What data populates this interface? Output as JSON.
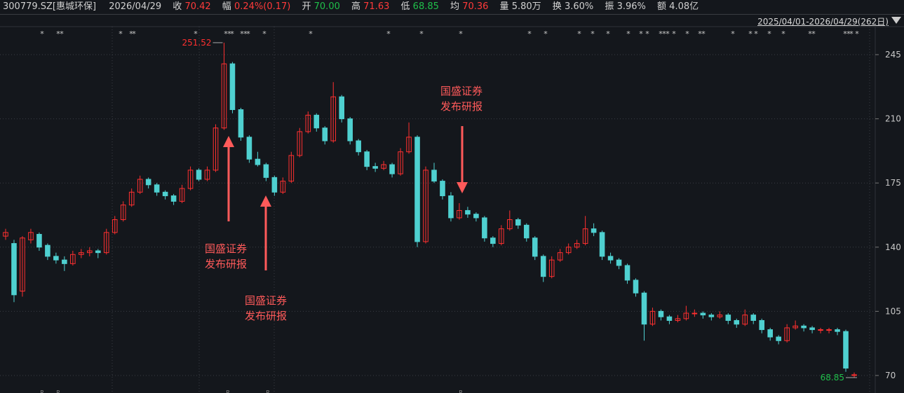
{
  "header": {
    "code": "300779.SZ[惠城环保]",
    "date": "2026/04/29",
    "close_label": "收",
    "close": "70.42",
    "chg_label": "幅",
    "chg": "0.24%(0.17)",
    "open_label": "开",
    "open": "70.00",
    "high_label": "高",
    "high": "71.63",
    "low_label": "低",
    "low": "68.85",
    "avg_label": "均",
    "avg": "70.36",
    "vol_label": "量",
    "vol": "5.80万",
    "turn_label": "换",
    "turn": "3.60%",
    "amp_label": "振",
    "amp": "3.96%",
    "amt_label": "额",
    "amt": "4.08亿"
  },
  "range": "2025/04/01-2026/04/29(262日)",
  "colors": {
    "up": "#ff3030",
    "down": "#4fd0d0",
    "bg": "#14171c",
    "annotation": "#ff5a5a"
  },
  "chart_data": {
    "type": "candlestick",
    "yticks": [
      245,
      210,
      175,
      140,
      105,
      70
    ],
    "ylim": [
      64,
      258
    ],
    "max_label": "251.52",
    "min_label": "68.85",
    "star_glyph": "*",
    "report_marker": "R",
    "annotations": [
      {
        "line1": "国盛证券",
        "line2": "发布研报"
      },
      {
        "line1": "国盛证券",
        "line2": "发布研报"
      },
      {
        "line1": "国盛证券",
        "line2": "发布研报"
      }
    ],
    "candles": [
      [
        146,
        150,
        144,
        148
      ],
      [
        142,
        144,
        110,
        114
      ],
      [
        116,
        146,
        113,
        145
      ],
      [
        144,
        150,
        142,
        148
      ],
      [
        147,
        148,
        138,
        140
      ],
      [
        141,
        142,
        133,
        135
      ],
      [
        135,
        137,
        131,
        133
      ],
      [
        133,
        135,
        127,
        131
      ],
      [
        131,
        138,
        130,
        136
      ],
      [
        136,
        139,
        134,
        137
      ],
      [
        137,
        140,
        135,
        138
      ],
      [
        138,
        139,
        134,
        137
      ],
      [
        137,
        150,
        136,
        148
      ],
      [
        148,
        157,
        147,
        155
      ],
      [
        155,
        165,
        154,
        163
      ],
      [
        163,
        172,
        162,
        170
      ],
      [
        170,
        179,
        169,
        177
      ],
      [
        177,
        178,
        172,
        174
      ],
      [
        174,
        175,
        168,
        170
      ],
      [
        170,
        171,
        166,
        168
      ],
      [
        168,
        169,
        163,
        165
      ],
      [
        165,
        174,
        164,
        172
      ],
      [
        172,
        184,
        171,
        182
      ],
      [
        182,
        183,
        176,
        177
      ],
      [
        177,
        184,
        176,
        182
      ],
      [
        182,
        207,
        181,
        205
      ],
      [
        205,
        251.52,
        204,
        240
      ],
      [
        240,
        241,
        213,
        215
      ],
      [
        215,
        216,
        198,
        200
      ],
      [
        200,
        201,
        186,
        188
      ],
      [
        188,
        192,
        184,
        185
      ],
      [
        185,
        186,
        176,
        178
      ],
      [
        178,
        179,
        168,
        170
      ],
      [
        170,
        178,
        169,
        176
      ],
      [
        176,
        192,
        175,
        190
      ],
      [
        190,
        205,
        189,
        203
      ],
      [
        203,
        214,
        202,
        212
      ],
      [
        212,
        213,
        203,
        205
      ],
      [
        205,
        206,
        196,
        198
      ],
      [
        198,
        230,
        197,
        222
      ],
      [
        222,
        223,
        208,
        210
      ],
      [
        210,
        211,
        196,
        198
      ],
      [
        198,
        199,
        190,
        192
      ],
      [
        192,
        193,
        182,
        184
      ],
      [
        184,
        186,
        181,
        183
      ],
      [
        183,
        187,
        182,
        185
      ],
      [
        185,
        186,
        178,
        180
      ],
      [
        180,
        194,
        179,
        192
      ],
      [
        192,
        208,
        191,
        200
      ],
      [
        200,
        201,
        140,
        143
      ],
      [
        143,
        184,
        142,
        182
      ],
      [
        182,
        186,
        175,
        176
      ],
      [
        176,
        177,
        166,
        168
      ],
      [
        168,
        170,
        154,
        156
      ],
      [
        156,
        164,
        155,
        160
      ],
      [
        160,
        162,
        156,
        158
      ],
      [
        158,
        159,
        154,
        156
      ],
      [
        156,
        157,
        143,
        145
      ],
      [
        145,
        146,
        140,
        142
      ],
      [
        142,
        152,
        141,
        150
      ],
      [
        150,
        160,
        149,
        155
      ],
      [
        155,
        156,
        150,
        152
      ],
      [
        152,
        153,
        143,
        145
      ],
      [
        145,
        146,
        133,
        135
      ],
      [
        135,
        136,
        121,
        124
      ],
      [
        124,
        135,
        123,
        133
      ],
      [
        133,
        139,
        132,
        137
      ],
      [
        137,
        142,
        136,
        140
      ],
      [
        140,
        144,
        139,
        142
      ],
      [
        142,
        157,
        141,
        150
      ],
      [
        150,
        153,
        146,
        148
      ],
      [
        148,
        149,
        133,
        135
      ],
      [
        135,
        137,
        131,
        133
      ],
      [
        133,
        134,
        128,
        130
      ],
      [
        130,
        131,
        120,
        122
      ],
      [
        122,
        123,
        113,
        115
      ],
      [
        115,
        116,
        89,
        98
      ],
      [
        98,
        107,
        97,
        105
      ],
      [
        105,
        106,
        100,
        102
      ],
      [
        102,
        103,
        98,
        100
      ],
      [
        100,
        103,
        99,
        101
      ],
      [
        101,
        108,
        100,
        104
      ],
      [
        104,
        106,
        102,
        104
      ],
      [
        104,
        105,
        101,
        103
      ],
      [
        103,
        104,
        100,
        102
      ],
      [
        102,
        105,
        101,
        103
      ],
      [
        103,
        104,
        98,
        100
      ],
      [
        100,
        101,
        96,
        98
      ],
      [
        98,
        106,
        97,
        103
      ],
      [
        103,
        104,
        98,
        100
      ],
      [
        100,
        101,
        93,
        95
      ],
      [
        95,
        96,
        89,
        91
      ],
      [
        91,
        92,
        87,
        89
      ],
      [
        89,
        98,
        88,
        96
      ],
      [
        96,
        100,
        95,
        97
      ],
      [
        97,
        98,
        94,
        96
      ],
      [
        96,
        97,
        93,
        95
      ],
      [
        95,
        96,
        93,
        95
      ],
      [
        95,
        96,
        93,
        95
      ],
      [
        95,
        96,
        92,
        94
      ],
      [
        94,
        95,
        72,
        74
      ],
      [
        70,
        71.63,
        68.85,
        70.42
      ]
    ]
  }
}
